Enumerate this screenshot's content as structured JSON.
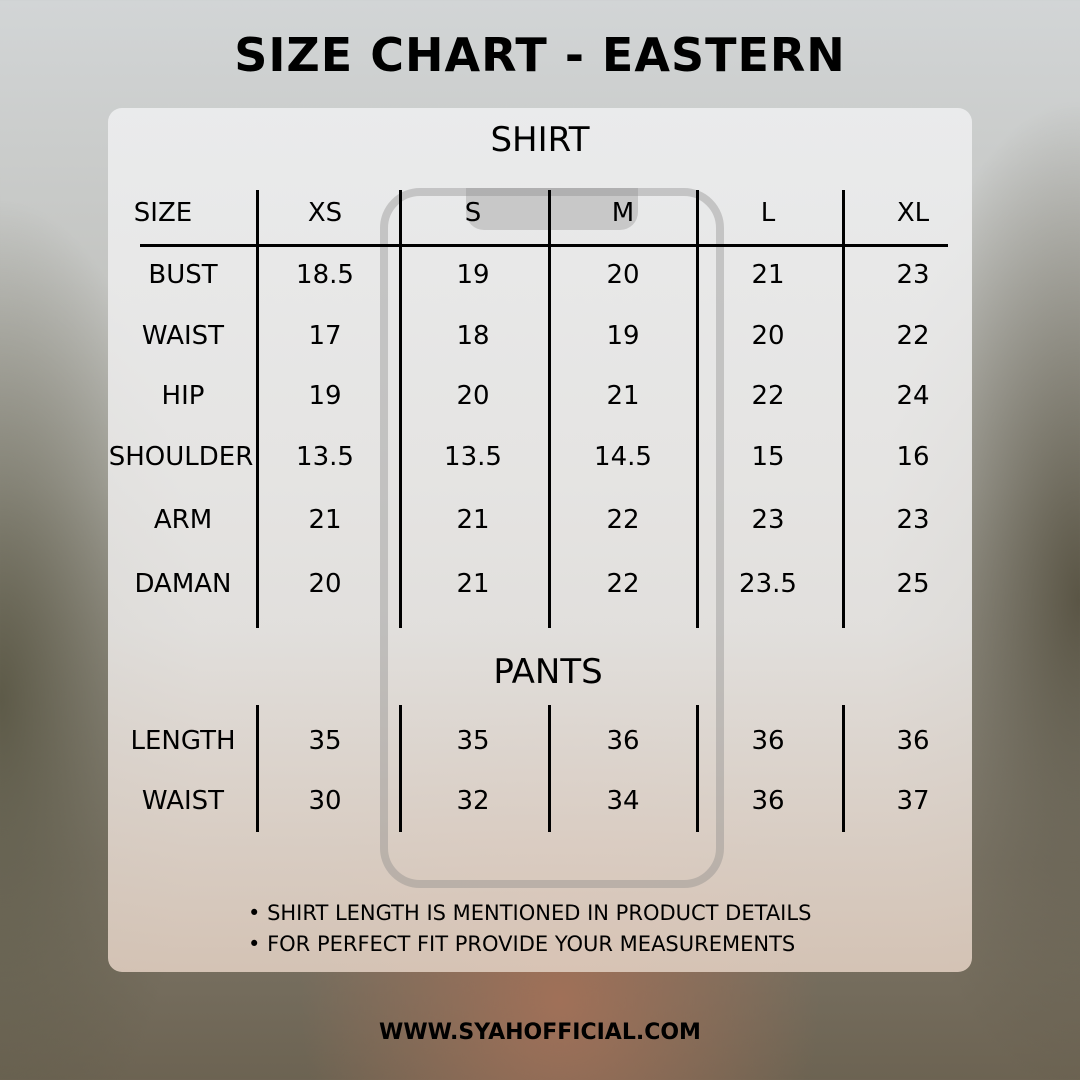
{
  "title": "SIZE CHART - EASTERN",
  "shirt": {
    "heading": "SHIRT",
    "header": [
      "SIZE",
      "XS",
      "S",
      "M",
      "L",
      "XL"
    ],
    "rows": [
      [
        "BUST",
        "18.5",
        "19",
        "20",
        "21",
        "23"
      ],
      [
        "WAIST",
        "17",
        "18",
        "19",
        "20",
        "22"
      ],
      [
        "HIP",
        "19",
        "20",
        "21",
        "22",
        "24"
      ],
      [
        "SHOULDER",
        "13.5",
        "13.5",
        "14.5",
        "15",
        "16"
      ],
      [
        "ARM",
        "21",
        "21",
        "22",
        "23",
        "23"
      ],
      [
        "DAMAN",
        "20",
        "21",
        "22",
        "23.5",
        "25"
      ]
    ]
  },
  "pants": {
    "heading": "PANTS",
    "rows": [
      [
        "LENGTH",
        "35",
        "35",
        "36",
        "36",
        "36"
      ],
      [
        "WAIST",
        "30",
        "32",
        "34",
        "36",
        "37"
      ]
    ]
  },
  "notes": [
    "SHIRT LENGTH IS MENTIONED IN PRODUCT DETAILS",
    "FOR PERFECT FIT PROVIDE YOUR MEASUREMENTS"
  ],
  "website": "WWW.SYAHOFFICIAL.COM"
}
